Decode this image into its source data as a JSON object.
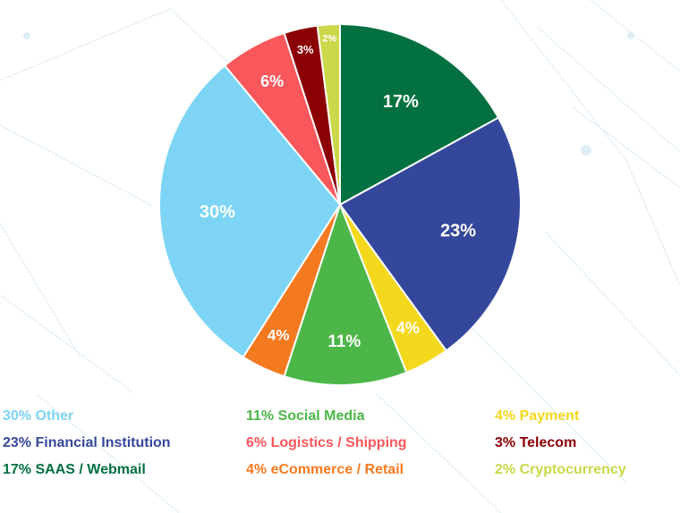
{
  "chart_data": {
    "type": "pie",
    "slices": [
      {
        "label": "17%",
        "legend": "17% SAAS / Webmail",
        "value": 17,
        "color": "#027040"
      },
      {
        "label": "23%",
        "legend": "23% Financial Institution",
        "value": 23,
        "color": "#35479b"
      },
      {
        "label": "4%",
        "legend": "4% Payment",
        "value": 4,
        "color": "#f4d81e"
      },
      {
        "label": "11%",
        "legend": "11% Social Media",
        "value": 11,
        "color": "#4cb748"
      },
      {
        "label": "4%",
        "legend": "4% eCommerce / Retail",
        "value": 4,
        "color": "#f47a20"
      },
      {
        "label": "30%",
        "legend": "30% Other",
        "value": 30,
        "color": "#7dd4f5"
      },
      {
        "label": "6%",
        "legend": "6% Logistics / Shipping",
        "value": 6,
        "color": "#f8575b"
      },
      {
        "label": "3%",
        "legend": "3% Telecom",
        "value": 3,
        "color": "#8b0004"
      },
      {
        "label": "2%",
        "legend": "2% Cryptocurrency",
        "value": 2,
        "color": "#cbd84a"
      }
    ]
  },
  "legend_colors": {
    "other": "#7dd4f5",
    "financial": "#35479b",
    "saas": "#027040",
    "social": "#4cb748",
    "logistics": "#f8575b",
    "ecommerce": "#f47a20",
    "payment": "#f4d81e",
    "telecom": "#8b0004",
    "crypto": "#cbd84a"
  },
  "legend": {
    "col1": [
      "30% Other",
      "23% Financial Institution",
      "17% SAAS / Webmail"
    ],
    "col2": [
      "11% Social Media",
      "6% Logistics / Shipping",
      "4% eCommerce / Retail"
    ],
    "col3": [
      "4% Payment",
      "3% Telecom",
      "2% Cryptocurrency"
    ]
  }
}
